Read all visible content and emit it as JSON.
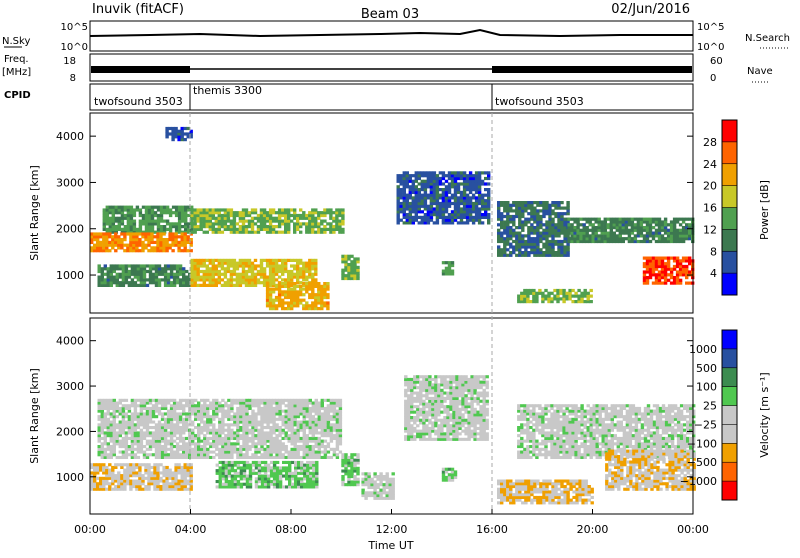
{
  "header": {
    "station": "Inuvik (fitACF)",
    "beam": "Beam 03",
    "date": "02/Jun/2016"
  },
  "small_panels": {
    "nsky_label": "N.Sky",
    "nsky_ticks": [
      "10^5",
      "10^0"
    ],
    "nsearch_label": "N.Search",
    "nsearch_ticks": [
      "10^5",
      "10^0"
    ],
    "freq_label": "Freq.",
    "freq_unit": "[MHz]",
    "freq_ticks": [
      "18",
      "8"
    ],
    "nave_label": "Nave",
    "nave_ticks": [
      "60",
      "0"
    ],
    "cpid_label": "CPID",
    "cpid_segments": [
      {
        "name": "twofsound 3503",
        "start_hour": 0,
        "end_hour": 4
      },
      {
        "name": "themis 3300",
        "start_hour": 4,
        "end_hour": 16
      },
      {
        "name": "twofsound 3503",
        "start_hour": 16,
        "end_hour": 24
      }
    ]
  },
  "axes": {
    "ylabel": "Slant Range [km]",
    "yticks": [
      "4000",
      "3000",
      "2000",
      "1000"
    ],
    "xlabel": "Time UT",
    "xticks": [
      "00:00",
      "04:00",
      "08:00",
      "12:00",
      "16:00",
      "20:00",
      "00:00"
    ],
    "range_km": [
      180,
      4500
    ],
    "time_hours": [
      0,
      24
    ]
  },
  "chart_data": [
    {
      "type": "heatmap",
      "name": "power",
      "colorbar_label": "Power [dB]",
      "colorbar_ticks": [
        "28",
        "24",
        "20",
        "16",
        "12",
        "8",
        "4"
      ],
      "colorbar_range": [
        0,
        30
      ],
      "colors": [
        "#0000ff",
        "#2850a0",
        "#3c7850",
        "#50a050",
        "#c8c828",
        "#f0a000",
        "#ff6400",
        "#ff0000"
      ],
      "regions": [
        {
          "t0": 0.5,
          "t1": 4,
          "r0": 1900,
          "r1": 2500,
          "value": 12
        },
        {
          "t0": 0,
          "t1": 4,
          "r0": 1500,
          "r1": 1900,
          "value": 22
        },
        {
          "t0": 0.3,
          "t1": 4,
          "r0": 750,
          "r1": 1200,
          "value": 10
        },
        {
          "t0": 4,
          "t1": 10,
          "r0": 1900,
          "r1": 2400,
          "value": 14
        },
        {
          "t0": 4,
          "t1": 9,
          "r0": 750,
          "r1": 1300,
          "value": 18
        },
        {
          "t0": 7,
          "t1": 9.5,
          "r0": 250,
          "r1": 800,
          "value": 20
        },
        {
          "t0": 10,
          "t1": 10.6,
          "r0": 900,
          "r1": 1400,
          "value": 14
        },
        {
          "t0": 12.2,
          "t1": 15.8,
          "r0": 2100,
          "r1": 3200,
          "value": 6
        },
        {
          "t0": 14,
          "t1": 14.4,
          "r0": 1000,
          "r1": 1300,
          "value": 12
        },
        {
          "t0": 16.2,
          "t1": 19,
          "r0": 1400,
          "r1": 2600,
          "value": 8
        },
        {
          "t0": 17,
          "t1": 20,
          "r0": 400,
          "r1": 700,
          "value": 14
        },
        {
          "t0": 19,
          "t1": 24,
          "r0": 1700,
          "r1": 2200,
          "value": 10
        },
        {
          "t0": 22,
          "t1": 24,
          "r0": 800,
          "r1": 1400,
          "value": 26
        },
        {
          "t0": 3,
          "t1": 4,
          "r0": 3900,
          "r1": 4200,
          "value": 6
        }
      ]
    },
    {
      "type": "heatmap",
      "name": "velocity",
      "colorbar_label": "Velocity [m s⁻¹]",
      "colorbar_ticks": [
        "1000",
        "500",
        "100",
        "25",
        "−25",
        "−100",
        "−500",
        "−1000"
      ],
      "colorbar_range": [
        -1000,
        1000
      ],
      "colors": [
        "#ff0000",
        "#ff6400",
        "#f0a000",
        "#c8c8c8",
        "#c8c8c8",
        "#50c850",
        "#3c8c50",
        "#2850a0",
        "#0000ff"
      ],
      "regions": [
        {
          "t0": 0.3,
          "t1": 10,
          "r0": 1400,
          "r1": 2700,
          "value": 0
        },
        {
          "t0": 0,
          "t1": 4,
          "r0": 700,
          "r1": 1300,
          "value": -300
        },
        {
          "t0": 5,
          "t1": 9,
          "r0": 750,
          "r1": 1300,
          "value": 200
        },
        {
          "t0": 10,
          "t1": 10.6,
          "r0": 800,
          "r1": 1500,
          "value": 200
        },
        {
          "t0": 10.8,
          "t1": 12,
          "r0": 500,
          "r1": 1100,
          "value": 0
        },
        {
          "t0": 12.5,
          "t1": 15.8,
          "r0": 1800,
          "r1": 3200,
          "value": 0
        },
        {
          "t0": 16.2,
          "t1": 20,
          "r0": 400,
          "r1": 900,
          "value": -300
        },
        {
          "t0": 17,
          "t1": 24,
          "r0": 1400,
          "r1": 2600,
          "value": 0
        },
        {
          "t0": 20.5,
          "t1": 24,
          "r0": 700,
          "r1": 1600,
          "value": -300
        },
        {
          "t0": 14,
          "t1": 14.5,
          "r0": 900,
          "r1": 1200,
          "value": 200
        }
      ]
    }
  ]
}
